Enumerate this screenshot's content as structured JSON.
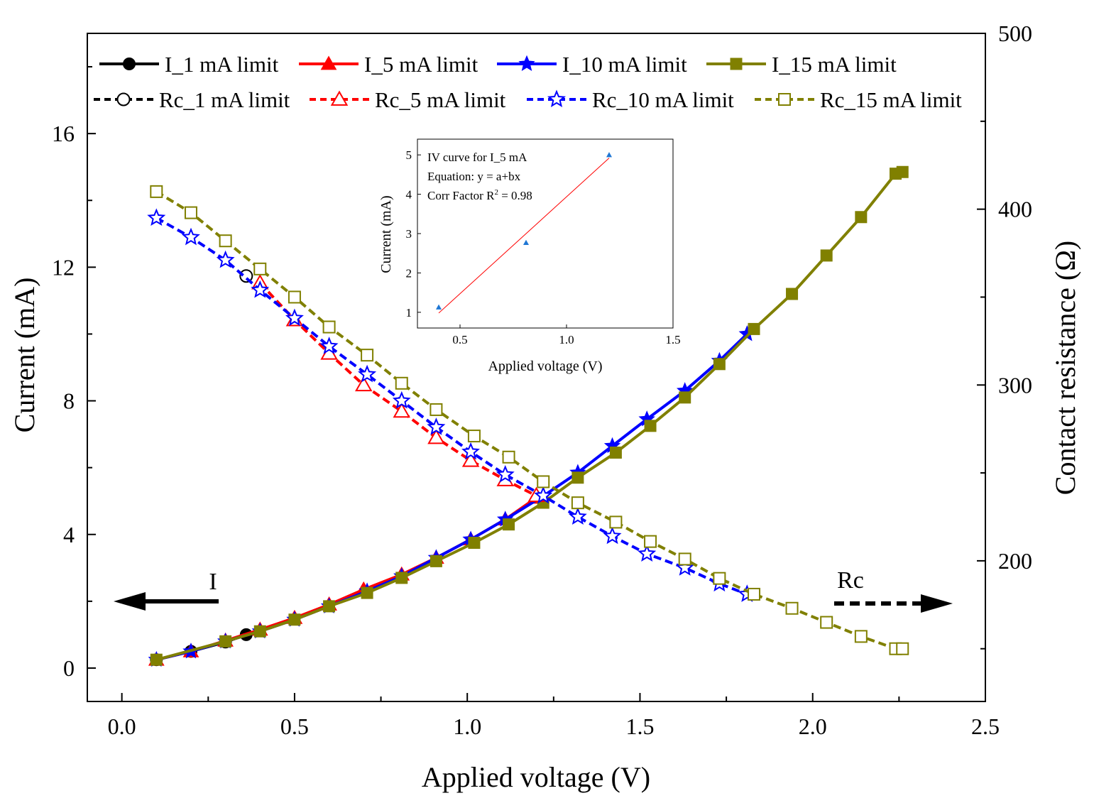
{
  "chart_data": {
    "type": "line",
    "xlabel": "Applied voltage (V)",
    "ylabel_left": "Current (mA)",
    "ylabel_right": "Contact resistance (Ω)",
    "xlim": [
      -0.1,
      2.5
    ],
    "ylim_left": [
      -1,
      19
    ],
    "ylim_right": [
      120,
      500
    ],
    "x_ticks": [
      "0.0",
      "0.5",
      "1.0",
      "1.5",
      "2.0",
      "2.5"
    ],
    "y_left_ticks": [
      "0",
      "4",
      "8",
      "12",
      "16"
    ],
    "y_right_ticks": [
      "200",
      "300",
      "400",
      "500"
    ],
    "annotations": {
      "current_arrow_label": "I",
      "resistance_arrow_label": "Rc"
    },
    "legend_position": "top",
    "series": [
      {
        "name": "I_1 mA limit",
        "axis": "left",
        "color": "#000000",
        "marker": "circle",
        "filled": true,
        "dashed": false,
        "points": [
          [
            0.1,
            0.25
          ],
          [
            0.2,
            0.5
          ],
          [
            0.3,
            0.78
          ],
          [
            0.36,
            1.0
          ]
        ]
      },
      {
        "name": "I_5 mA limit",
        "axis": "left",
        "color": "#ff0000",
        "marker": "triangle",
        "filled": true,
        "dashed": false,
        "points": [
          [
            0.1,
            0.25
          ],
          [
            0.2,
            0.5
          ],
          [
            0.3,
            0.82
          ],
          [
            0.4,
            1.15
          ],
          [
            0.5,
            1.5
          ],
          [
            0.6,
            1.9
          ],
          [
            0.7,
            2.35
          ],
          [
            0.81,
            2.8
          ],
          [
            0.91,
            3.3
          ],
          [
            1.01,
            3.85
          ],
          [
            1.11,
            4.45
          ],
          [
            1.2,
            5.1
          ]
        ]
      },
      {
        "name": "I_10 mA limit",
        "axis": "left",
        "color": "#0000ff",
        "marker": "star",
        "filled": true,
        "dashed": false,
        "points": [
          [
            0.1,
            0.25
          ],
          [
            0.2,
            0.5
          ],
          [
            0.3,
            0.8
          ],
          [
            0.4,
            1.1
          ],
          [
            0.5,
            1.45
          ],
          [
            0.6,
            1.85
          ],
          [
            0.71,
            2.3
          ],
          [
            0.81,
            2.75
          ],
          [
            0.91,
            3.3
          ],
          [
            1.01,
            3.85
          ],
          [
            1.11,
            4.45
          ],
          [
            1.22,
            5.15
          ],
          [
            1.32,
            5.85
          ],
          [
            1.42,
            6.65
          ],
          [
            1.52,
            7.45
          ],
          [
            1.63,
            8.3
          ],
          [
            1.73,
            9.2
          ],
          [
            1.81,
            10.0
          ]
        ]
      },
      {
        "name": "I_15 mA limit",
        "axis": "left",
        "color": "#808000",
        "marker": "square",
        "filled": true,
        "dashed": false,
        "points": [
          [
            0.1,
            0.25
          ],
          [
            0.3,
            0.8
          ],
          [
            0.4,
            1.1
          ],
          [
            0.5,
            1.45
          ],
          [
            0.6,
            1.85
          ],
          [
            0.71,
            2.25
          ],
          [
            0.81,
            2.7
          ],
          [
            0.91,
            3.2
          ],
          [
            1.02,
            3.75
          ],
          [
            1.12,
            4.3
          ],
          [
            1.22,
            4.95
          ],
          [
            1.32,
            5.7
          ],
          [
            1.43,
            6.45
          ],
          [
            1.53,
            7.25
          ],
          [
            1.63,
            8.1
          ],
          [
            1.73,
            9.1
          ],
          [
            1.83,
            10.15
          ],
          [
            1.94,
            11.2
          ],
          [
            2.04,
            12.35
          ],
          [
            2.14,
            13.5
          ],
          [
            2.24,
            14.8
          ],
          [
            2.26,
            14.85
          ]
        ]
      },
      {
        "name": "Rc_1 mA limit",
        "axis": "right",
        "color": "#000000",
        "marker": "circle",
        "filled": false,
        "dashed": true,
        "points": [
          [
            0.36,
            362
          ]
        ]
      },
      {
        "name": "Rc_5 mA limit",
        "axis": "right",
        "color": "#ff0000",
        "marker": "triangle",
        "filled": false,
        "dashed": true,
        "points": [
          [
            0.4,
            358
          ],
          [
            0.5,
            337
          ],
          [
            0.6,
            318
          ],
          [
            0.7,
            300
          ],
          [
            0.81,
            285
          ],
          [
            0.91,
            270
          ],
          [
            1.01,
            257
          ],
          [
            1.11,
            246
          ],
          [
            1.2,
            237
          ]
        ]
      },
      {
        "name": "Rc_10 mA limit",
        "axis": "right",
        "color": "#0000ff",
        "marker": "star",
        "filled": false,
        "dashed": true,
        "points": [
          [
            0.1,
            395
          ],
          [
            0.2,
            384
          ],
          [
            0.3,
            371
          ],
          [
            0.4,
            354
          ],
          [
            0.5,
            338
          ],
          [
            0.6,
            322
          ],
          [
            0.71,
            306
          ],
          [
            0.81,
            291
          ],
          [
            0.91,
            276
          ],
          [
            1.01,
            262
          ],
          [
            1.11,
            249
          ],
          [
            1.22,
            237
          ],
          [
            1.32,
            225
          ],
          [
            1.42,
            214
          ],
          [
            1.52,
            204
          ],
          [
            1.63,
            196
          ],
          [
            1.73,
            187
          ],
          [
            1.81,
            181
          ]
        ]
      },
      {
        "name": "Rc_15 mA limit",
        "axis": "right",
        "color": "#808000",
        "marker": "square",
        "filled": false,
        "dashed": true,
        "points": [
          [
            0.1,
            410
          ],
          [
            0.2,
            398
          ],
          [
            0.3,
            382
          ],
          [
            0.4,
            366
          ],
          [
            0.5,
            350
          ],
          [
            0.6,
            333
          ],
          [
            0.71,
            317
          ],
          [
            0.81,
            301
          ],
          [
            0.91,
            286
          ],
          [
            1.02,
            271
          ],
          [
            1.12,
            259
          ],
          [
            1.22,
            245
          ],
          [
            1.32,
            233
          ],
          [
            1.43,
            222
          ],
          [
            1.53,
            211
          ],
          [
            1.63,
            201
          ],
          [
            1.73,
            190
          ],
          [
            1.83,
            181
          ],
          [
            1.94,
            173
          ],
          [
            2.04,
            165
          ],
          [
            2.14,
            157
          ],
          [
            2.24,
            150
          ],
          [
            2.26,
            150
          ]
        ]
      }
    ],
    "inset": {
      "type": "scatter",
      "title": "IV curve for I_5 mA",
      "equation": "Equation: y = a+bx",
      "corr_prefix": "Corr Factor R",
      "corr_sup": "2",
      "corr_suffix": " = 0.98",
      "xlabel": "Applied voltage (V)",
      "ylabel": "Current (mA)",
      "xlim": [
        0.3,
        1.5
      ],
      "ylim": [
        0.6,
        5.4
      ],
      "x_ticks": [
        "0.5",
        "1.0",
        "1.5"
      ],
      "y_ticks": [
        "1",
        "2",
        "3",
        "4",
        "5"
      ],
      "points": [
        [
          0.4,
          1.13
        ],
        [
          0.81,
          2.77
        ],
        [
          1.2,
          5.0
        ]
      ],
      "fit_line": [
        [
          0.4,
          0.98
        ],
        [
          1.2,
          4.92
        ]
      ],
      "point_color": "#1f77d4",
      "fit_color": "#ff0000"
    }
  }
}
